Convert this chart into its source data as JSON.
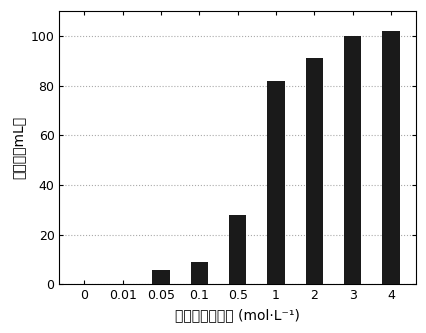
{
  "categories": [
    "0",
    "0.01",
    "0.05",
    "0.1",
    "0.5",
    "1",
    "2",
    "3",
    "4"
  ],
  "values": [
    0,
    0,
    6,
    9,
    28,
    82,
    91,
    100,
    102
  ],
  "bar_color": "#1a1a1a",
  "ylabel": "产氢量（mL）",
  "xlabel": "氯氧化钓的浓度 (mol·L⁻¹)",
  "ylim": [
    0,
    110
  ],
  "yticks": [
    0,
    20,
    40,
    60,
    80,
    100
  ],
  "background_color": "#ffffff",
  "bar_width": 0.45,
  "ylabel_fontsize": 10,
  "xlabel_fontsize": 10,
  "tick_fontsize": 9
}
